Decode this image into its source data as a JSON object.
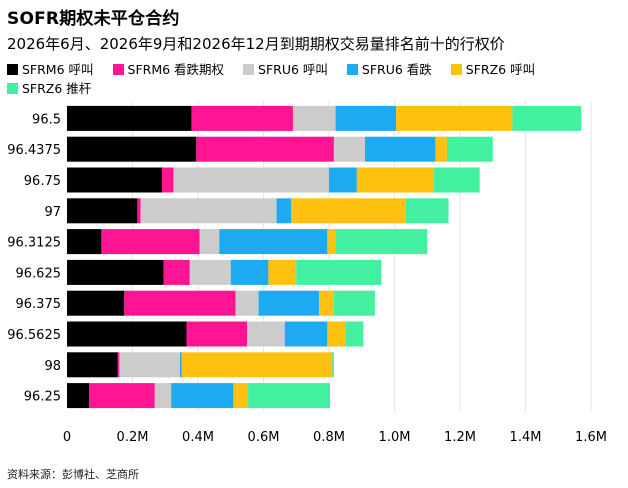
{
  "title": "SOFR期权未平仓合约",
  "subtitle": "2026年6月、2026年9月和2026年12月到期期权交易量排名前十的行权价",
  "source": "资料来源：彭博社、芝商所",
  "chart_data": {
    "type": "bar",
    "orientation": "horizontal",
    "stacked": true,
    "title": "SOFR期权未平仓合约",
    "subtitle": "2026年6月、2026年9月和2026年12月到期期权交易量排名前十的行权价",
    "xlabel": "",
    "ylabel": "",
    "xlim": [
      0,
      1600000
    ],
    "xticks": [
      0,
      200000,
      400000,
      600000,
      800000,
      1000000,
      1200000,
      1400000,
      1600000
    ],
    "xtick_labels": [
      "0",
      "0.2M",
      "0.4M",
      "0.6M",
      "0.8M",
      "1.0M",
      "1.2M",
      "1.4M",
      "1.6M"
    ],
    "grid": true,
    "legend_position": "top",
    "categories": [
      "96.5",
      "96.4375",
      "96.75",
      "97",
      "96.3125",
      "96.625",
      "96.375",
      "96.5625",
      "98",
      "96.25"
    ],
    "series": [
      {
        "name": "SFRM6 呼叫",
        "color": "#000000",
        "values": [
          380000,
          395000,
          290000,
          215000,
          105000,
          295000,
          175000,
          365000,
          155000,
          68000
        ]
      },
      {
        "name": "SFRM6 看跌期权",
        "color": "#ff1493",
        "values": [
          310000,
          420000,
          35000,
          10000,
          300000,
          80000,
          340000,
          185000,
          5000,
          200000
        ]
      },
      {
        "name": "SFRU6 呼叫",
        "color": "#cccccc",
        "values": [
          130000,
          95000,
          475000,
          415000,
          60000,
          125000,
          70000,
          115000,
          185000,
          50000
        ]
      },
      {
        "name": "SFRU6 看跌",
        "color": "#1eaaf1",
        "values": [
          185000,
          215000,
          85000,
          45000,
          330000,
          115000,
          185000,
          130000,
          5000,
          190000
        ]
      },
      {
        "name": "SFRZ6 呼叫",
        "color": "#fec10f",
        "values": [
          355000,
          35000,
          235000,
          350000,
          25000,
          85000,
          45000,
          55000,
          460000,
          45000
        ]
      },
      {
        "name": "SFRZ6 推杆",
        "color": "#42f0a0",
        "values": [
          210000,
          140000,
          140000,
          130000,
          280000,
          260000,
          125000,
          55000,
          5000,
          250000
        ]
      }
    ]
  }
}
